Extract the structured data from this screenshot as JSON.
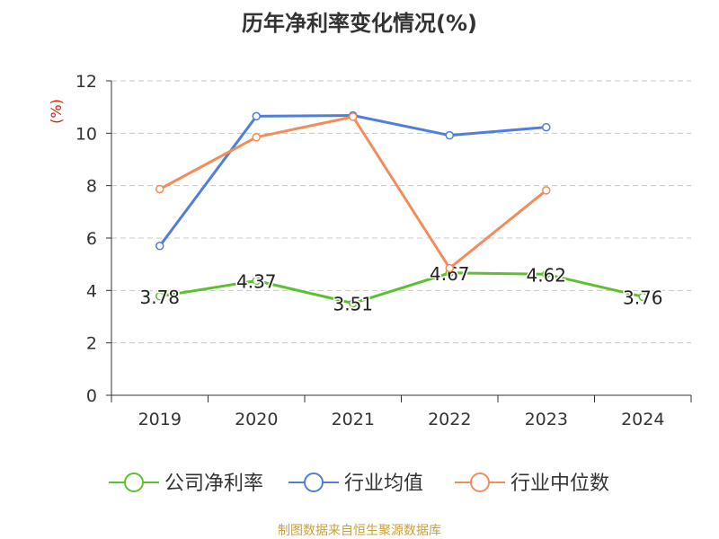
{
  "chart_data": {
    "type": "line",
    "title": "历年净利率变化情况(%)",
    "ylabel": "(%)",
    "xlabel": "",
    "x": [
      "2019",
      "2020",
      "2021",
      "2022",
      "2023",
      "2024"
    ],
    "ylim": [
      0,
      12
    ],
    "yticks": [
      0,
      2,
      4,
      6,
      8,
      10,
      12
    ],
    "grid": true,
    "legend_position": "bottom",
    "series": [
      {
        "name": "公司净利率",
        "color": "#5dc12f",
        "show_labels": true,
        "values": [
          3.78,
          4.37,
          3.51,
          4.67,
          4.62,
          3.76
        ]
      },
      {
        "name": "行业均值",
        "color": "#4f7fdb",
        "show_labels": false,
        "values": [
          5.7,
          10.65,
          10.68,
          9.92,
          10.23,
          null
        ]
      },
      {
        "name": "行业中位数",
        "color": "#f28c5b",
        "show_labels": false,
        "values": [
          7.87,
          9.85,
          10.63,
          4.85,
          7.82,
          null
        ]
      }
    ]
  },
  "source": "制图数据来自恒生聚源数据库",
  "colors": {
    "source": "#c9a13b",
    "ylabel": "#d81e06",
    "axis": "#333333",
    "grid": "#c8c8c8"
  }
}
